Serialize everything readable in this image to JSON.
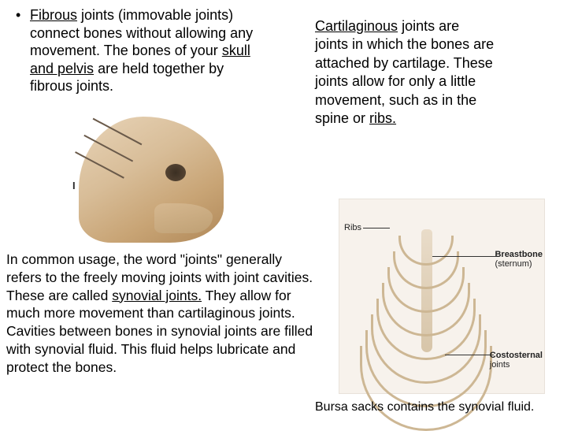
{
  "topLeft": {
    "bullet": "•",
    "t1a": "Fibrous",
    "t1b": " joints (immovable joints) connect bones without allowing any movement. The bones of your ",
    "t1c": "skull and pelvis",
    "t1d": " are held together by fibrous joints."
  },
  "topRight": {
    "r1a": "Cartilaginous",
    "r1b": " joints are joints in which the bones are attached by cartilage. These joints allow for only a little movement, such as in the spine or ",
    "r1c": "ribs."
  },
  "bottomLeft": {
    "b1": "In common usage, the word \"joints\" generally refers to the freely moving joints with joint cavities. These are called ",
    "b2": "synovial joints.",
    "b3": " They allow for much more movement than cartilaginous joints. Cavities between bones in synovial joints are filled with synovial fluid. This fluid helps lubricate and protect the bones."
  },
  "bursa": "Bursa sacks contains the synovial fluid.",
  "skullLabel": "I",
  "anat": {
    "ribs": "Ribs",
    "breast1": "Breastbone",
    "breast2": "(sternum)",
    "costo1": "Costosternal",
    "costo2": "joints"
  },
  "ribcage": {
    "count": 8,
    "color": "#cdb794",
    "sternum_color_top": "#e9dcc9",
    "sternum_color_bottom": "#d7c5a9",
    "bg": "#f7f2ec"
  }
}
